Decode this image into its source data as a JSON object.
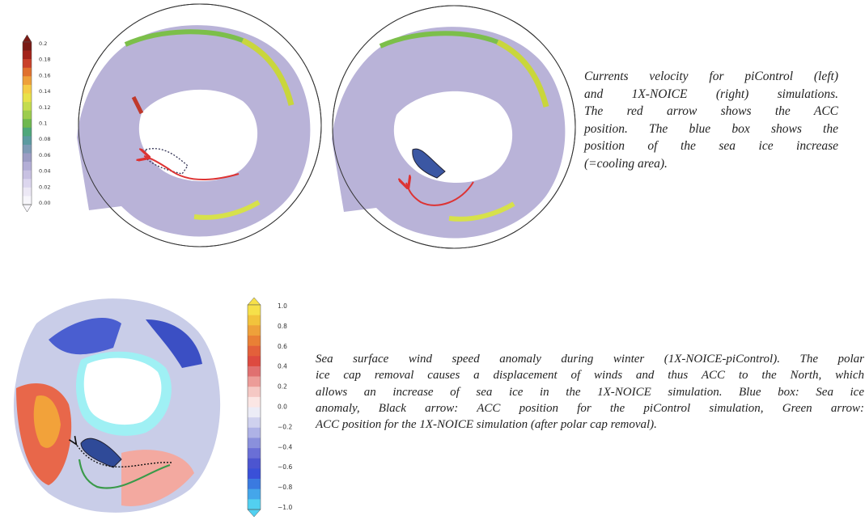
{
  "top_panel": {
    "colorbar_labels": [
      "0.2",
      "0.18",
      "0.16",
      "0.14",
      "0.12",
      "0.1",
      "0.08",
      "0.06",
      "0.04",
      "0.02",
      "0.00"
    ],
    "caption_lines": [
      "Currents velocity for piControl (left)",
      "and 1X-NOICE (right) simulations.",
      "The red arrow shows the ACC",
      "position. The blue box shows the",
      "position of the sea ice increase",
      "(=cooling area)."
    ]
  },
  "bottom_panel": {
    "colorbar_labels": [
      "1.0",
      "0.8",
      "0.6",
      "0.4",
      "0.2",
      "0.0",
      "−0.2",
      "−0.4",
      "−0.6",
      "−0.8",
      "−1.0"
    ],
    "caption_lines": [
      "Sea surface wind speed anomaly during winter (1X-NOICE-piControl). The polar",
      "ice cap removal causes a displacement of winds and thus ACC to the North, which",
      "allows an increase of sea ice in the 1X-NOICE simulation. Blue box: Sea ice",
      "anomaly, Black arrow: ACC position for the piControl simulation, Green arrow:",
      "ACC position for the 1X-NOICE simulation (after polar cap removal)."
    ]
  }
}
